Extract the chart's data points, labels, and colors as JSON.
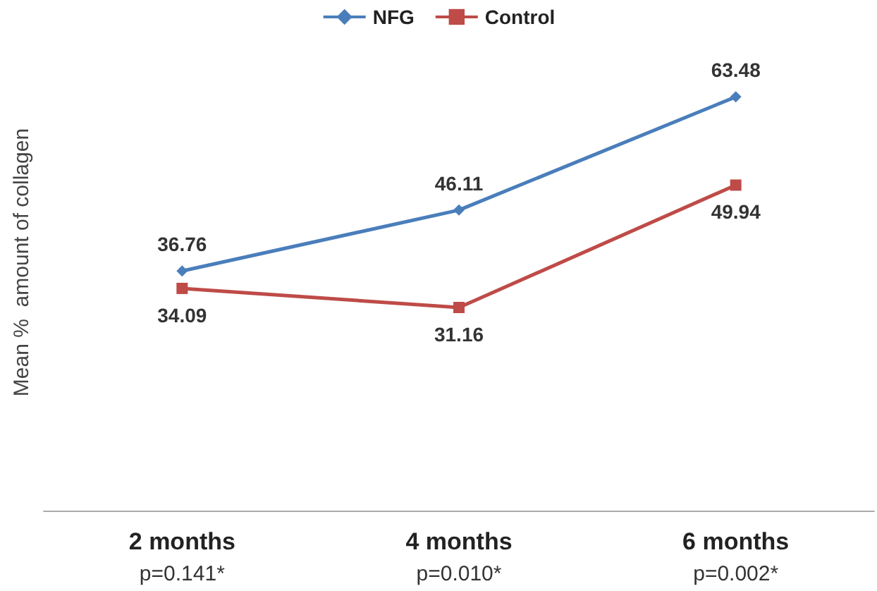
{
  "chart_data": {
    "type": "line",
    "ylabel": "Mean %  amount of collagen",
    "categories": [
      "2 months",
      "4 months",
      "6 months"
    ],
    "series": [
      {
        "name": "NFG",
        "color": "#4a7ebb",
        "values": [
          36.76,
          46.11,
          63.48
        ],
        "marker": "diamond"
      },
      {
        "name": "Control",
        "color": "#be4b48",
        "values": [
          34.09,
          31.16,
          49.94
        ],
        "marker": "square"
      }
    ],
    "data_labels": true,
    "legend": "top",
    "grid": false,
    "line_style": "solid",
    "annotations": [
      "p=0.141*",
      "p=0.010*",
      "p=0.002*"
    ]
  }
}
